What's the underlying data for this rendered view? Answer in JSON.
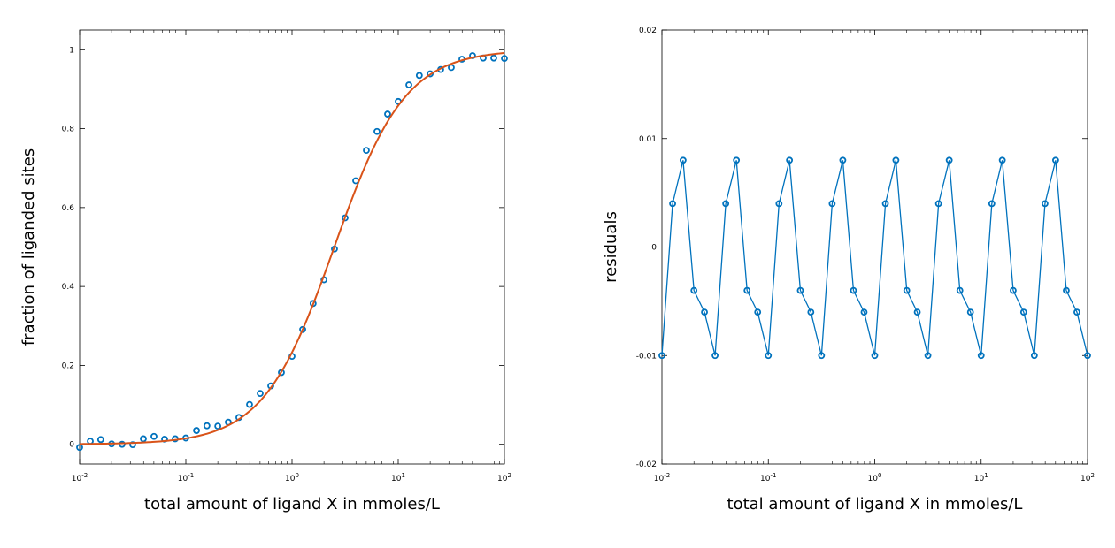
{
  "chart_data": [
    {
      "type": "scatter",
      "xlabel": "total amount of ligand X in mmoles/L",
      "ylabel": "fraction of liganded sites",
      "xscale": "log",
      "xlim": [
        0.01,
        100
      ],
      "ylim": [
        -0.05,
        1.05
      ],
      "xticks": [
        0.01,
        0.1,
        1,
        10,
        100
      ],
      "yticks": [
        0,
        0.2,
        0.4,
        0.6,
        0.8,
        1
      ],
      "yticklabels": [
        "0",
        "0.2",
        "0.4",
        "0.6",
        "0.8",
        "1"
      ],
      "grid": false,
      "colors": {
        "data": "#0072bd",
        "fit": "#d95319"
      },
      "series": [
        {
          "kind": "points",
          "x": [
            0.01,
            0.0126,
            0.0158,
            0.02,
            0.0251,
            0.0316,
            0.0398,
            0.0501,
            0.0631,
            0.0794,
            0.1,
            0.126,
            0.158,
            0.2,
            0.251,
            0.316,
            0.398,
            0.501,
            0.631,
            0.794,
            1,
            1.26,
            1.58,
            2,
            2.51,
            3.16,
            3.98,
            5.01,
            6.31,
            7.94,
            10,
            12.6,
            15.8,
            20,
            25.1,
            31.6,
            39.8,
            50.1,
            63.1,
            79.4,
            100
          ],
          "y": [
            -0.008,
            0.008,
            0.012,
            0.001,
            0.0,
            -0.001,
            0.014,
            0.02,
            0.013,
            0.014,
            0.016,
            0.035,
            0.047,
            0.046,
            0.056,
            0.068,
            0.101,
            0.129,
            0.148,
            0.182,
            0.223,
            0.291,
            0.357,
            0.417,
            0.495,
            0.574,
            0.668,
            0.745,
            0.793,
            0.837,
            0.869,
            0.911,
            0.935,
            0.939,
            0.95,
            0.955,
            0.976,
            0.985,
            0.979,
            0.979,
            0.978
          ]
        },
        {
          "kind": "fit-line",
          "model": "hill",
          "k_half": 2.5,
          "hill_n": 1.3,
          "x_range": [
            0.01,
            100
          ]
        }
      ]
    },
    {
      "type": "line",
      "xlabel": "total amount of ligand X in mmoles/L",
      "ylabel": "residuals",
      "xscale": "log",
      "xlim": [
        0.01,
        100
      ],
      "ylim": [
        -0.02,
        0.02
      ],
      "xticks": [
        0.01,
        0.1,
        1,
        10,
        100
      ],
      "yticks": [
        -0.02,
        -0.01,
        0,
        0.01,
        0.02
      ],
      "yticklabels": [
        "-0.02",
        "-0.01",
        "0",
        "0.01",
        "0.02"
      ],
      "grid": false,
      "zero_line": true,
      "colors": {
        "data": "#0072bd",
        "zero": "#000000"
      },
      "series": [
        {
          "kind": "points-line",
          "x": [
            0.01,
            0.0126,
            0.0158,
            0.02,
            0.0251,
            0.0316,
            0.0398,
            0.0501,
            0.0631,
            0.0794,
            0.1,
            0.126,
            0.158,
            0.2,
            0.251,
            0.316,
            0.398,
            0.501,
            0.631,
            0.794,
            1,
            1.26,
            1.58,
            2,
            2.51,
            3.16,
            3.98,
            5.01,
            6.31,
            7.94,
            10,
            12.6,
            15.8,
            20,
            25.1,
            31.6,
            39.8,
            50.1,
            63.1,
            79.4,
            100
          ],
          "y": [
            -0.01,
            0.004,
            0.008,
            -0.004,
            -0.006,
            -0.01,
            0.004,
            0.008,
            -0.004,
            -0.006,
            -0.01,
            0.004,
            0.008,
            -0.004,
            -0.006,
            -0.01,
            0.004,
            0.008,
            -0.004,
            -0.006,
            -0.01,
            0.004,
            0.008,
            -0.004,
            -0.006,
            -0.01,
            0.004,
            0.008,
            -0.004,
            -0.006,
            -0.01,
            0.004,
            0.008,
            -0.004,
            -0.006,
            -0.01,
            0.004,
            0.008,
            -0.004,
            -0.006,
            -0.01
          ]
        }
      ]
    }
  ]
}
